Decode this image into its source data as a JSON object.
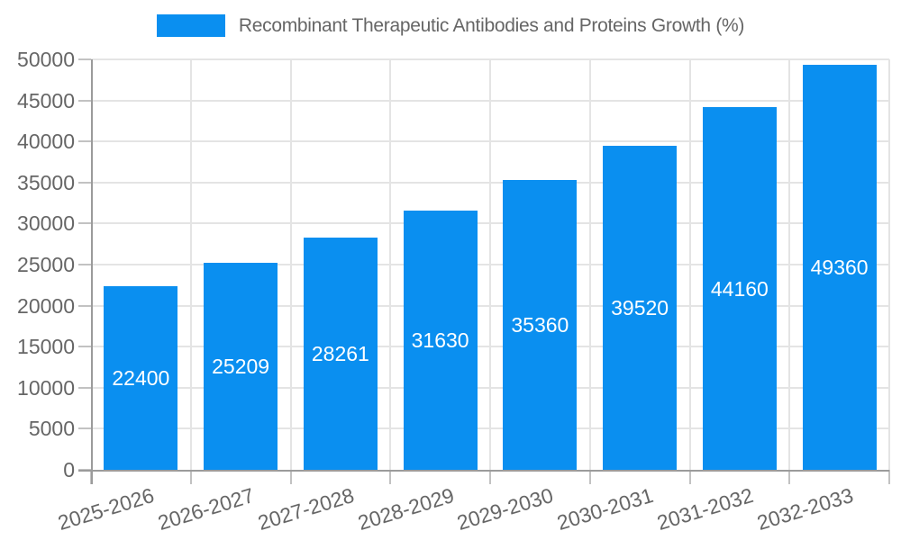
{
  "legend": {
    "label": "Recombinant Therapeutic Antibodies and Proteins Growth (%)"
  },
  "colors": {
    "bar": "#0a8ff0",
    "grid": "#e4e4e4",
    "tick": "#c2c2c2",
    "axis": "#9b9b9b",
    "text": "#666666",
    "value_text": "#ffffff",
    "background": "#ffffff"
  },
  "chart_data": {
    "type": "bar",
    "title": "Recombinant Therapeutic Antibodies and Proteins Growth (%)",
    "categories": [
      "2025-2026",
      "2026-2027",
      "2027-2028",
      "2028-2029",
      "2029-2030",
      "2030-2031",
      "2031-2032",
      "2032-2033"
    ],
    "values": [
      22400,
      25209,
      28261,
      31630,
      35360,
      39520,
      44160,
      49360
    ],
    "xlabel": "",
    "ylabel": "",
    "ylim": [
      0,
      50000
    ],
    "ytick_step": 5000,
    "yticks": [
      0,
      5000,
      10000,
      15000,
      20000,
      25000,
      30000,
      35000,
      40000,
      45000,
      50000
    ],
    "legend_entries": [
      "Recombinant Therapeutic Antibodies and Proteins Growth (%)"
    ],
    "legend_position": "top-center",
    "grid": true,
    "value_labels": "inside-center",
    "x_tick_rotation_deg": -17
  }
}
